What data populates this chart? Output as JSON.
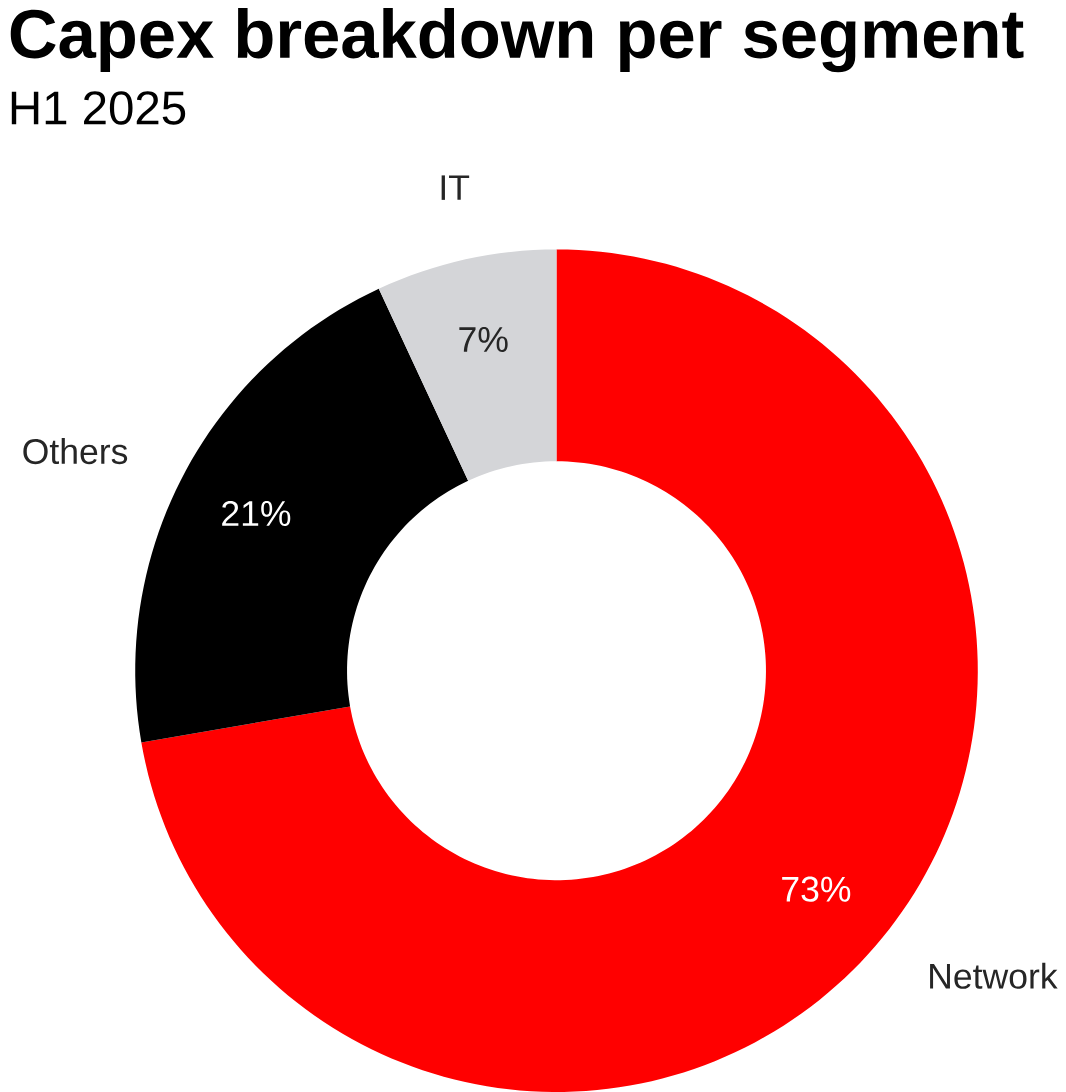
{
  "chart_data": {
    "type": "donut",
    "title": "Capex breakdown per segment",
    "subtitle": "H1 2025",
    "categories": [
      "Network",
      "Others",
      "IT"
    ],
    "values": [
      73,
      21,
      7
    ],
    "value_labels": [
      "73%",
      "21%",
      "7%"
    ],
    "colors": [
      "#ff0000",
      "#000000",
      "#d4d5d8"
    ],
    "legend": false
  }
}
